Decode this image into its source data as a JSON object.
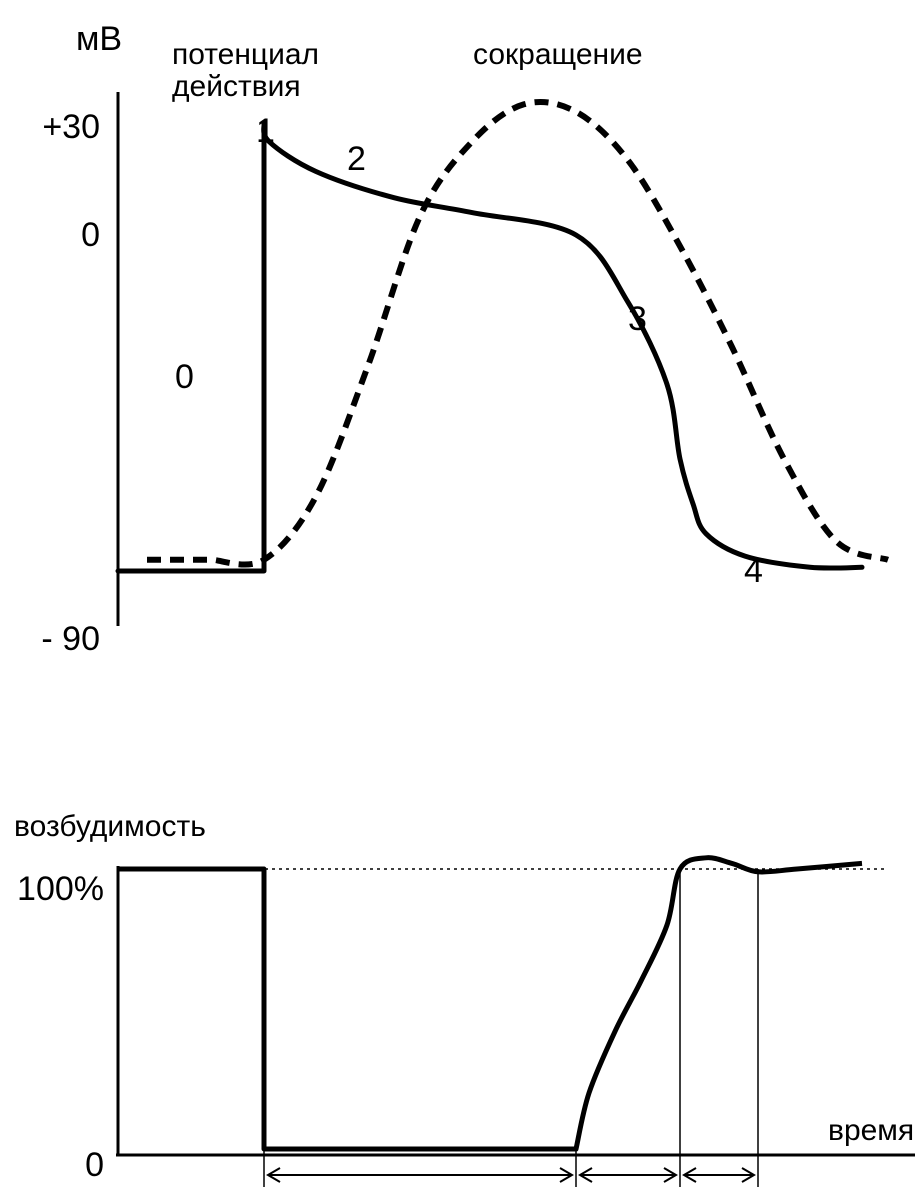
{
  "chart_data": [
    {
      "type": "line",
      "ylabel": "мВ",
      "yticks": [
        "+30",
        "0",
        "- 90"
      ],
      "yvalues": [
        30,
        0,
        -90
      ],
      "ylim": [
        -90,
        30
      ],
      "series": [
        {
          "name": "потенциал действия",
          "style": "solid",
          "phase_labels": [
            "0",
            "1",
            "2",
            "3",
            "4"
          ],
          "x": [
            0,
            20,
            20,
            22,
            40,
            70,
            100,
            140,
            160,
            175,
            180,
            185,
            190,
            205,
            230,
            250
          ],
          "y": [
            -90,
            -90,
            30,
            25,
            17,
            10,
            6,
            0,
            -18,
            -40,
            -60,
            -72,
            -80,
            -86,
            -89,
            -89
          ]
        },
        {
          "name": "сокращение",
          "style": "dashed",
          "x": [
            -25,
            0,
            20,
            40,
            60,
            80,
            100,
            120,
            140,
            160,
            180,
            200,
            220,
            240,
            260
          ],
          "y": [
            -87,
            -87,
            -87,
            -70,
            -35,
            5,
            25,
            35,
            33,
            20,
            -3,
            -30,
            -60,
            -82,
            -87
          ]
        }
      ]
    },
    {
      "type": "line",
      "ylabel": "возбудимость",
      "xlabel": "время",
      "yticks": [
        "100%",
        "0"
      ],
      "yvalues": [
        100,
        0
      ],
      "ylim": [
        0,
        100
      ],
      "series": [
        {
          "name": "",
          "style": "solid",
          "x": [
            0,
            20,
            20,
            140,
            145,
            155,
            165,
            175,
            180,
            190,
            200,
            210,
            225,
            250
          ],
          "y": [
            100,
            100,
            0,
            0,
            20,
            42,
            60,
            80,
            100,
            104,
            102,
            99,
            100,
            102
          ]
        }
      ],
      "reference_line": 100,
      "marked_times": [
        20,
        140,
        180,
        210
      ]
    }
  ]
}
